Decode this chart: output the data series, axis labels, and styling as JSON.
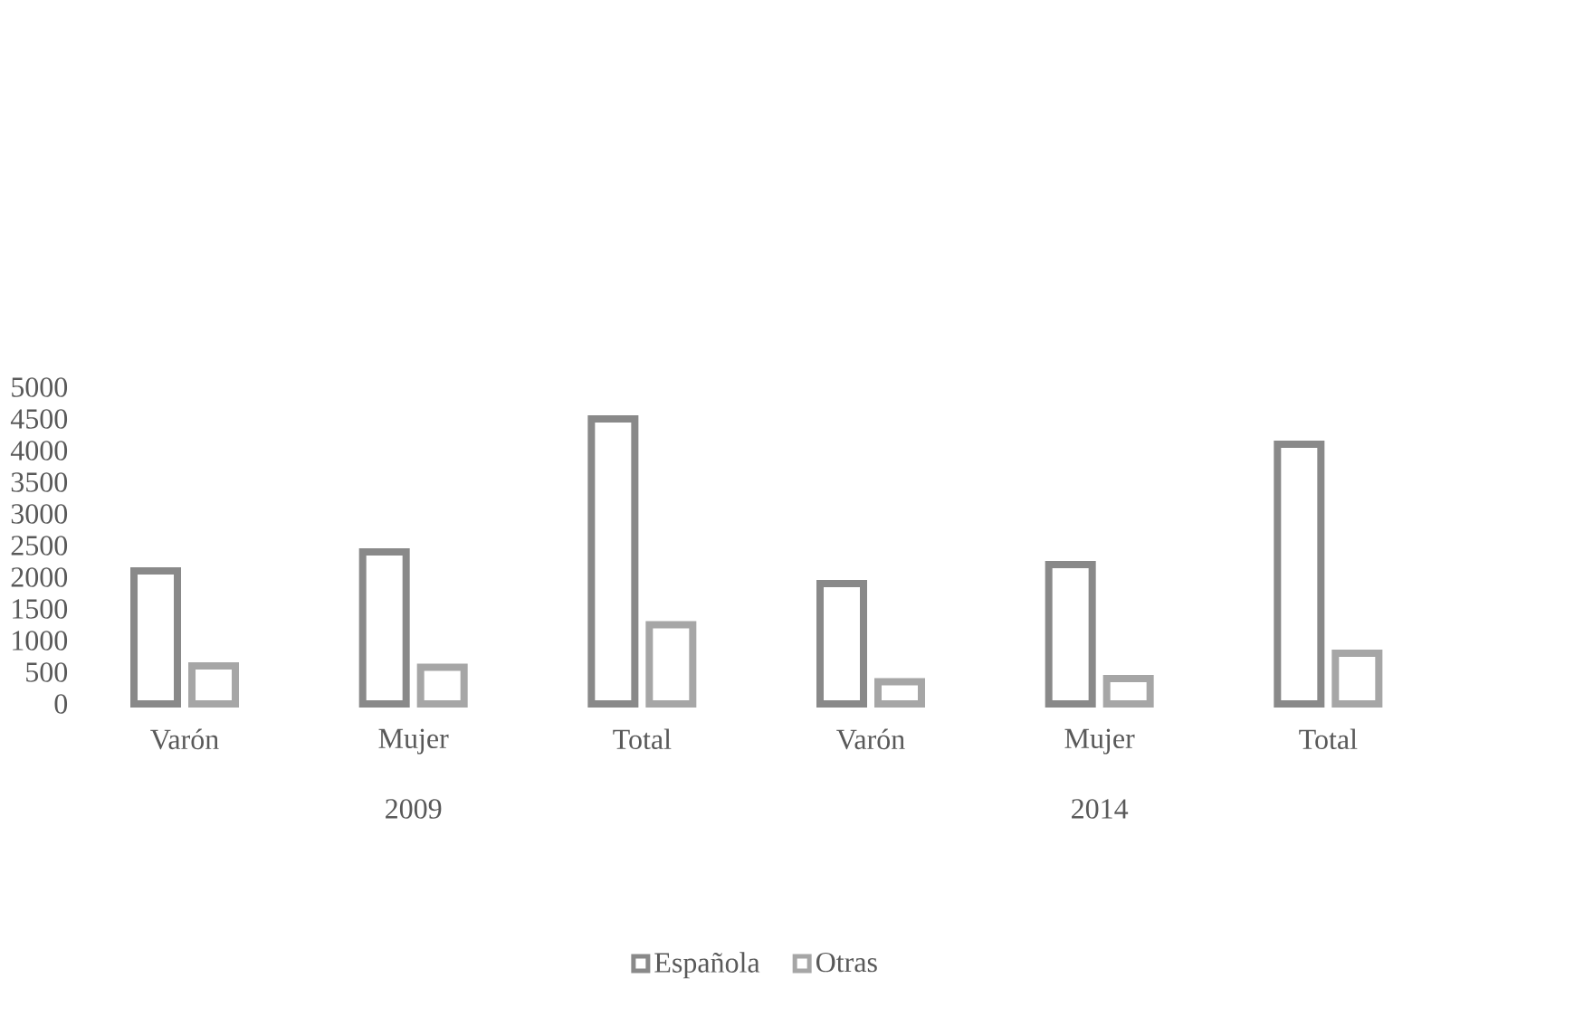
{
  "chart_data": {
    "type": "bar",
    "categories": [
      "Varón",
      "Mujer",
      "Total",
      "Varón",
      "Mujer",
      "Total"
    ],
    "series": [
      {
        "name": "Española",
        "color": "#898989",
        "values": [
          2100,
          2400,
          4500,
          1900,
          2200,
          4100
        ]
      },
      {
        "name": "Otras",
        "color": "#a6a6a6",
        "values": [
          600,
          580,
          1250,
          350,
          400,
          800
        ]
      }
    ],
    "annotations": [
      "2009",
      "2014"
    ],
    "ylim": [
      0,
      5000
    ],
    "yticks": [
      0,
      500,
      1000,
      1500,
      2000,
      2500,
      3000,
      3500,
      4000,
      4500,
      5000
    ],
    "grid": false,
    "legend": "bottom"
  }
}
